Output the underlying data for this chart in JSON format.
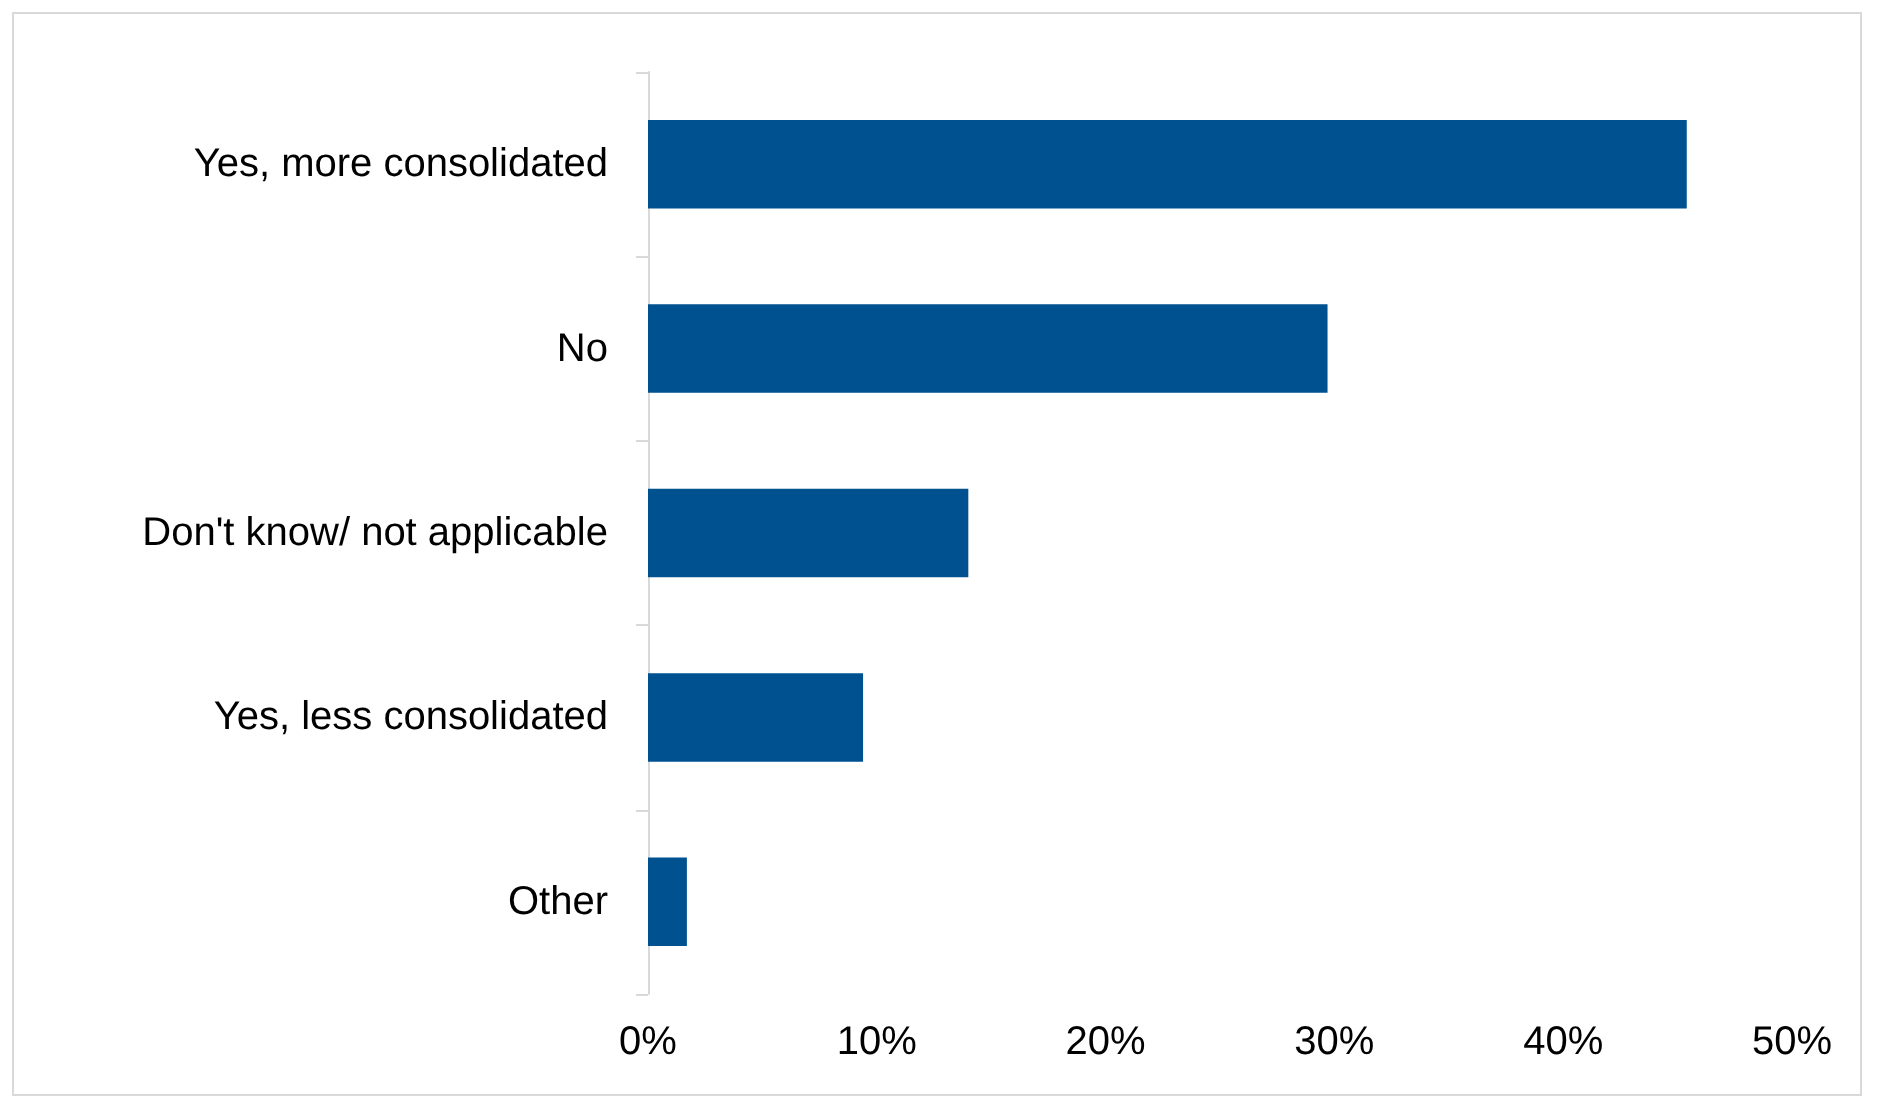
{
  "chart_data": {
    "type": "bar",
    "orientation": "horizontal",
    "categories": [
      "Yes, more consolidated",
      "No",
      "Don't know/ not applicable",
      "Yes, less consolidated",
      "Other"
    ],
    "values": [
      45.4,
      29.7,
      14,
      9.4,
      1.7
    ],
    "color": "#00518f",
    "xlim": [
      0,
      50
    ],
    "xticks": [
      {
        "value": 0,
        "label": "0%"
      },
      {
        "value": 10,
        "label": "10%"
      },
      {
        "value": 20,
        "label": "20%"
      },
      {
        "value": 30,
        "label": "30%"
      },
      {
        "value": 40,
        "label": "40%"
      },
      {
        "value": 50,
        "label": "50%"
      }
    ],
    "grid": false
  }
}
